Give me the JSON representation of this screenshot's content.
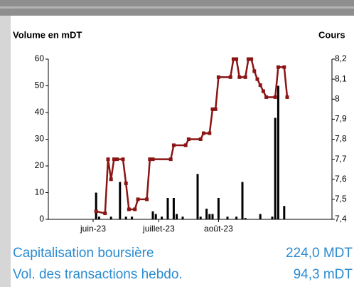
{
  "chart_data": {
    "type": "combo",
    "ylabel": "Volume en mDT",
    "y2label": "Cours",
    "xlim": [
      0,
      95
    ],
    "xticks": [
      {
        "value": 15,
        "label": "juin-23"
      },
      {
        "value": 37,
        "label": "juillet-23"
      },
      {
        "value": 57,
        "label": "août-23"
      }
    ],
    "ylim": [
      0,
      60
    ],
    "yticks": [
      0,
      10,
      20,
      30,
      40,
      50,
      60
    ],
    "y2lim": [
      7.4,
      8.2
    ],
    "y2ticks": [
      {
        "value": 7.4,
        "label": "7,4"
      },
      {
        "value": 7.5,
        "label": "7,5"
      },
      {
        "value": 7.6,
        "label": "7,6"
      },
      {
        "value": 7.7,
        "label": "7,7"
      },
      {
        "value": 7.8,
        "label": "7,8"
      },
      {
        "value": 7.9,
        "label": "7,9"
      },
      8,
      {
        "value": 8.1,
        "label": "8,1"
      },
      {
        "value": 8.2,
        "label": "8,2"
      }
    ],
    "series": [
      {
        "type": "bar",
        "color": "#000000",
        "x": [
          16,
          17,
          21,
          24,
          26,
          28,
          35,
          36,
          38,
          40,
          42,
          43,
          45,
          50,
          51,
          53,
          54,
          55,
          57,
          60,
          63,
          65,
          66,
          71,
          75,
          76,
          77,
          79
        ],
        "values": [
          10,
          1,
          1,
          14,
          1,
          1,
          3,
          2,
          1,
          8,
          8,
          2,
          1,
          17,
          1,
          4,
          2,
          2,
          8,
          1,
          1,
          14,
          0.5,
          2,
          1,
          38,
          50,
          5
        ]
      },
      {
        "type": "line",
        "axis": "y2",
        "color": "#8b1414",
        "x": [
          16,
          19,
          20,
          21,
          22,
          23,
          25,
          26,
          27,
          29,
          30,
          33,
          34,
          35,
          41,
          42,
          46,
          47,
          51,
          52,
          54,
          55,
          56,
          57,
          61,
          62,
          63,
          64,
          66,
          67,
          68,
          69,
          70,
          71,
          72,
          73,
          76,
          77,
          79,
          80
        ],
        "values": [
          7.44,
          7.43,
          7.7,
          7.6,
          7.7,
          7.7,
          7.7,
          7.58,
          7.45,
          7.45,
          7.5,
          7.5,
          7.7,
          7.7,
          7.7,
          7.77,
          7.77,
          7.8,
          7.8,
          7.83,
          7.83,
          7.95,
          7.95,
          8.11,
          8.11,
          8.2,
          8.2,
          8.11,
          8.11,
          8.2,
          8.2,
          8.14,
          8.1,
          8.07,
          8.04,
          8.01,
          8.01,
          8.16,
          8.16,
          8.01
        ]
      }
    ]
  },
  "summary": [
    {
      "label": "Capitalisation boursière",
      "value": "224,0 MDT"
    },
    {
      "label": "Vol. des transactions hebdo.",
      "value": "94,3 mDT"
    }
  ]
}
